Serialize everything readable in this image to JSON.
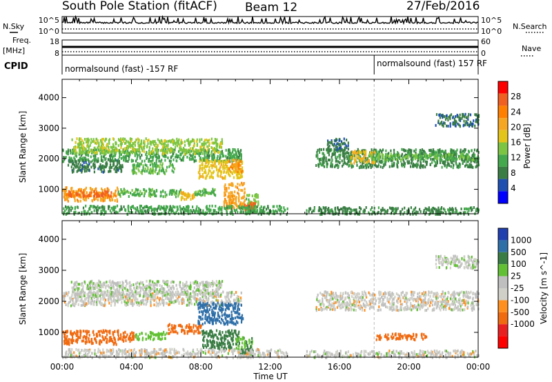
{
  "header": {
    "station": "South Pole Station (fitACF)",
    "beam": "Beam 12",
    "date": "27/Feb/2016"
  },
  "side_labels": {
    "nsky": "N.Sky",
    "nsearch": "N.Search",
    "freq_line1": "Freq.",
    "freq_line2": "[MHz]",
    "nave": "Nave",
    "cpid": "CPID"
  },
  "noise_axis": {
    "left_ticks": [
      "10^5",
      "10^0"
    ],
    "right_ticks": [
      "10^5",
      "10^0"
    ]
  },
  "freq_axis": {
    "left_ticks": [
      "18",
      "8"
    ],
    "right_ticks": [
      "60",
      "0"
    ]
  },
  "cpid_entries": [
    "normalsound (fast) -157 RF",
    "normalsound (fast) 157 RF"
  ],
  "cpid_change_hour": 18.0,
  "colors": {
    "power": [
      "#0000ff",
      "#1e4fb0",
      "#3a7d44",
      "#44a84c",
      "#7cc542",
      "#e3c51a",
      "#f5a623",
      "#ff8000",
      "#f06020",
      "#ff0000"
    ],
    "velocity": [
      "#2040b0",
      "#2e6fa8",
      "#3a7d44",
      "#62c034",
      "#bfbfbf",
      "#d0d0c8",
      "#ff9020",
      "#f06a10",
      "#e82020",
      "#ff0000"
    ]
  },
  "chart_data": [
    {
      "type": "heatmap",
      "name": "power",
      "xlabel": "",
      "ylabel": "Slant Range [km]",
      "xlim": [
        0,
        24
      ],
      "ylim": [
        200,
        4600
      ],
      "y_ticks": [
        1000,
        2000,
        3000,
        4000
      ],
      "colorbar": {
        "label": "Power [dB]",
        "range": [
          0,
          32
        ],
        "ticks": [
          4,
          8,
          12,
          16,
          20,
          24,
          28
        ]
      },
      "regions": [
        {
          "x": [
            0.0,
            3.2
          ],
          "y": [
            650,
            1100
          ],
          "value": 22
        },
        {
          "x": [
            0.3,
            2.8
          ],
          "y": [
            800,
            1000
          ],
          "value": 28
        },
        {
          "x": [
            3.2,
            6.8
          ],
          "y": [
            800,
            1050
          ],
          "value": 12
        },
        {
          "x": [
            6.8,
            7.6
          ],
          "y": [
            700,
            950
          ],
          "value": 20
        },
        {
          "x": [
            7.6,
            8.8
          ],
          "y": [
            800,
            1050
          ],
          "value": 12
        },
        {
          "x": [
            9.3,
            10.5
          ],
          "y": [
            400,
            1250
          ],
          "value": 22
        },
        {
          "x": [
            10.5,
            11.3
          ],
          "y": [
            300,
            900
          ],
          "value": 14
        },
        {
          "x": [
            10.5,
            11.1
          ],
          "y": [
            350,
            600
          ],
          "value": 28
        },
        {
          "x": [
            0.0,
            10.3
          ],
          "y": [
            1950,
            2350
          ],
          "value": 10
        },
        {
          "x": [
            0.5,
            9.2
          ],
          "y": [
            2200,
            2700
          ],
          "value": 15
        },
        {
          "x": [
            7.8,
            10.4
          ],
          "y": [
            1400,
            2000
          ],
          "value": 18
        },
        {
          "x": [
            9.6,
            10.4
          ],
          "y": [
            1600,
            2000
          ],
          "value": 24
        },
        {
          "x": [
            0.3,
            3.5
          ],
          "y": [
            1600,
            2000
          ],
          "value": 7
        },
        {
          "x": [
            4.0,
            6.5
          ],
          "y": [
            1550,
            1900
          ],
          "value": 12
        },
        {
          "x": [
            14.6,
            24.0
          ],
          "y": [
            1750,
            2350
          ],
          "value": 8
        },
        {
          "x": [
            16.6,
            18.0
          ],
          "y": [
            1900,
            2300
          ],
          "value": 20
        },
        {
          "x": [
            17.5,
            24.0
          ],
          "y": [
            2000,
            2200
          ],
          "value": 12
        },
        {
          "x": [
            15.2,
            16.5
          ],
          "y": [
            2300,
            2700
          ],
          "value": 6
        },
        {
          "x": [
            21.5,
            24.0
          ],
          "y": [
            3100,
            3500
          ],
          "value": 6
        },
        {
          "x": [
            0.0,
            13.0
          ],
          "y": [
            220,
            500
          ],
          "value": 10
        },
        {
          "x": [
            14.0,
            24.0
          ],
          "y": [
            220,
            450
          ],
          "value": 8
        }
      ]
    },
    {
      "type": "heatmap",
      "name": "velocity",
      "xlabel": "Time UT",
      "ylabel": "Slant Range [km]",
      "xlim": [
        0,
        24
      ],
      "ylim": [
        200,
        4600
      ],
      "y_ticks": [
        1000,
        2000,
        3000,
        4000
      ],
      "x_ticks": [
        "00:00",
        "04:00",
        "08:00",
        "12:00",
        "16:00",
        "20:00",
        "00:00"
      ],
      "colorbar": {
        "label": "Velocity [m s^-1]",
        "levels": [
          "-1000",
          "-500",
          "-100",
          "-25",
          "25",
          "100",
          "500",
          "1000"
        ]
      },
      "regions": [
        {
          "x": [
            0.0,
            3.2
          ],
          "y": [
            650,
            1100
          ],
          "value": -300
        },
        {
          "x": [
            3.2,
            4.2
          ],
          "y": [
            750,
            1050
          ],
          "value": -200
        },
        {
          "x": [
            4.2,
            6.0
          ],
          "y": [
            800,
            1050
          ],
          "value": 60
        },
        {
          "x": [
            6.0,
            8.0
          ],
          "y": [
            1000,
            1300
          ],
          "value": -300
        },
        {
          "x": [
            8.0,
            10.2
          ],
          "y": [
            500,
            1100
          ],
          "value": 200
        },
        {
          "x": [
            10.0,
            11.0
          ],
          "y": [
            400,
            900
          ],
          "value": 80
        },
        {
          "x": [
            10.2,
            11.0
          ],
          "y": [
            300,
            500
          ],
          "value": 150
        },
        {
          "x": [
            0.0,
            10.3
          ],
          "y": [
            1900,
            2350
          ],
          "value": 0
        },
        {
          "x": [
            0.5,
            9.2
          ],
          "y": [
            2200,
            2700
          ],
          "value": 10
        },
        {
          "x": [
            7.8,
            10.4
          ],
          "y": [
            1300,
            2000
          ],
          "value": 600
        },
        {
          "x": [
            14.6,
            24.0
          ],
          "y": [
            1750,
            2350
          ],
          "value": 0
        },
        {
          "x": [
            18.0,
            21.0
          ],
          "y": [
            800,
            1000
          ],
          "value": -300
        },
        {
          "x": [
            21.5,
            24.0
          ],
          "y": [
            3100,
            3500
          ],
          "value": 10
        },
        {
          "x": [
            0.0,
            13.0
          ],
          "y": [
            220,
            500
          ],
          "value": 0
        },
        {
          "x": [
            14.0,
            24.0
          ],
          "y": [
            220,
            450
          ],
          "value": 0
        }
      ]
    }
  ]
}
